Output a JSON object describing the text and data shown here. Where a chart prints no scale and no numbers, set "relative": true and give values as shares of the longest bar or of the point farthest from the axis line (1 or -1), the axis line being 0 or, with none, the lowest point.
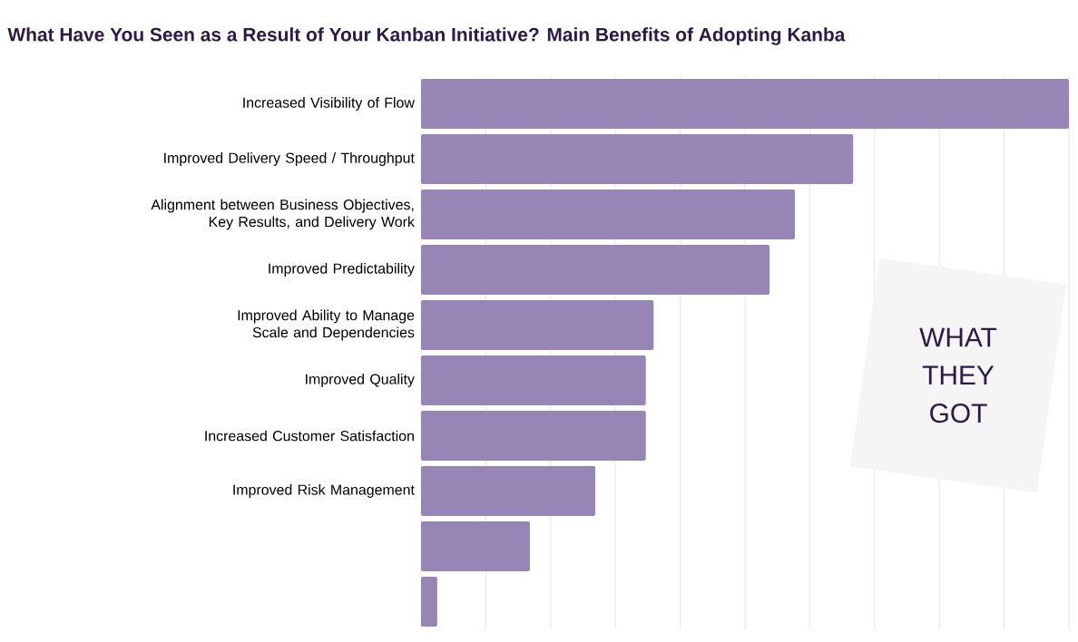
{
  "chart_data": {
    "type": "bar",
    "orientation": "horizontal",
    "relative": true,
    "title": "What Have You Seen as a Result of Your Kanban Initiative? Main Benefits of Adopting Kanba",
    "categories": [
      "Increased Visibility of Flow",
      "Improved Delivery Speed / Throughput",
      "Alignment between Business Objectives, Key Results, and Delivery Work",
      "Improved  Predictability",
      "Improved Ability to Manage Scale and Dependencies",
      "Improved Quality",
      "Increased Customer Satisfaction",
      "Improved Risk Management",
      null,
      null
    ],
    "values": [
      1,
      0.667,
      0.577,
      0.538,
      0.359,
      0.347,
      0.347,
      0.269,
      0.168,
      0.025
    ],
    "color": "#9786b5",
    "grid": "x",
    "annotations": [
      "WHAT THEY GOT"
    ]
  }
}
